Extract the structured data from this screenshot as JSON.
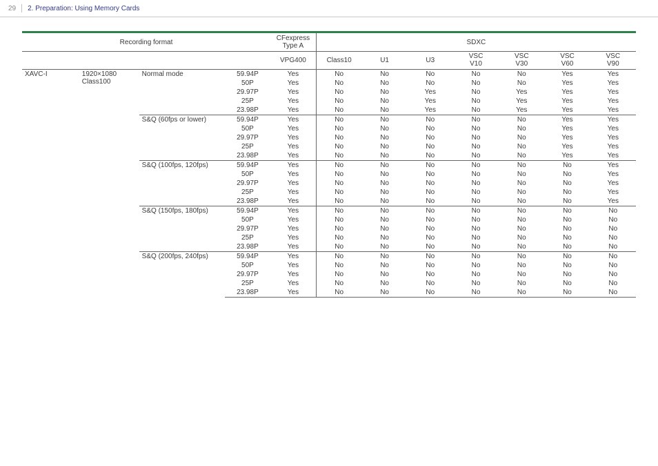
{
  "page_number": "29",
  "header_title": "2. Preparation: Using Memory Cards",
  "colors": {
    "accent_green": "#2e814d",
    "header_blue": "#333a8a",
    "rule": "#666666"
  },
  "colheads": {
    "recording_format": "Recording format",
    "cfe": "CFexpress",
    "cfe2": "Type A",
    "sdxc": "SDXC",
    "vpg": "VPG400",
    "class10": "Class10",
    "u1": "U1",
    "u3": "U3",
    "v10a": "VSC",
    "v10b": "V10",
    "v30a": "VSC",
    "v30b": "V30",
    "v60a": "VSC",
    "v60b": "V60",
    "v90a": "VSC",
    "v90b": "V90"
  },
  "codec": "XAVC-I",
  "resolution_l1": "1920×1080",
  "resolution_l2": "Class100",
  "groups": [
    {
      "mode": "Normal mode",
      "rows": [
        {
          "fr": "59.94P",
          "cfe": "Yes",
          "c10": "No",
          "u1": "No",
          "u3": "No",
          "v10": "No",
          "v30": "No",
          "v60": "Yes",
          "v90": "Yes"
        },
        {
          "fr": "50P",
          "cfe": "Yes",
          "c10": "No",
          "u1": "No",
          "u3": "No",
          "v10": "No",
          "v30": "No",
          "v60": "Yes",
          "v90": "Yes"
        },
        {
          "fr": "29.97P",
          "cfe": "Yes",
          "c10": "No",
          "u1": "No",
          "u3": "Yes",
          "v10": "No",
          "v30": "Yes",
          "v60": "Yes",
          "v90": "Yes"
        },
        {
          "fr": "25P",
          "cfe": "Yes",
          "c10": "No",
          "u1": "No",
          "u3": "Yes",
          "v10": "No",
          "v30": "Yes",
          "v60": "Yes",
          "v90": "Yes"
        },
        {
          "fr": "23.98P",
          "cfe": "Yes",
          "c10": "No",
          "u1": "No",
          "u3": "Yes",
          "v10": "No",
          "v30": "Yes",
          "v60": "Yes",
          "v90": "Yes"
        }
      ]
    },
    {
      "mode": "S&Q (60fps or lower)",
      "rows": [
        {
          "fr": "59.94P",
          "cfe": "Yes",
          "c10": "No",
          "u1": "No",
          "u3": "No",
          "v10": "No",
          "v30": "No",
          "v60": "Yes",
          "v90": "Yes"
        },
        {
          "fr": "50P",
          "cfe": "Yes",
          "c10": "No",
          "u1": "No",
          "u3": "No",
          "v10": "No",
          "v30": "No",
          "v60": "Yes",
          "v90": "Yes"
        },
        {
          "fr": "29.97P",
          "cfe": "Yes",
          "c10": "No",
          "u1": "No",
          "u3": "No",
          "v10": "No",
          "v30": "No",
          "v60": "Yes",
          "v90": "Yes"
        },
        {
          "fr": "25P",
          "cfe": "Yes",
          "c10": "No",
          "u1": "No",
          "u3": "No",
          "v10": "No",
          "v30": "No",
          "v60": "Yes",
          "v90": "Yes"
        },
        {
          "fr": "23.98P",
          "cfe": "Yes",
          "c10": "No",
          "u1": "No",
          "u3": "No",
          "v10": "No",
          "v30": "No",
          "v60": "Yes",
          "v90": "Yes"
        }
      ]
    },
    {
      "mode": "S&Q (100fps, 120fps)",
      "rows": [
        {
          "fr": "59.94P",
          "cfe": "Yes",
          "c10": "No",
          "u1": "No",
          "u3": "No",
          "v10": "No",
          "v30": "No",
          "v60": "No",
          "v90": "Yes"
        },
        {
          "fr": "50P",
          "cfe": "Yes",
          "c10": "No",
          "u1": "No",
          "u3": "No",
          "v10": "No",
          "v30": "No",
          "v60": "No",
          "v90": "Yes"
        },
        {
          "fr": "29.97P",
          "cfe": "Yes",
          "c10": "No",
          "u1": "No",
          "u3": "No",
          "v10": "No",
          "v30": "No",
          "v60": "No",
          "v90": "Yes"
        },
        {
          "fr": "25P",
          "cfe": "Yes",
          "c10": "No",
          "u1": "No",
          "u3": "No",
          "v10": "No",
          "v30": "No",
          "v60": "No",
          "v90": "Yes"
        },
        {
          "fr": "23.98P",
          "cfe": "Yes",
          "c10": "No",
          "u1": "No",
          "u3": "No",
          "v10": "No",
          "v30": "No",
          "v60": "No",
          "v90": "Yes"
        }
      ]
    },
    {
      "mode": "S&Q (150fps, 180fps)",
      "rows": [
        {
          "fr": "59.94P",
          "cfe": "Yes",
          "c10": "No",
          "u1": "No",
          "u3": "No",
          "v10": "No",
          "v30": "No",
          "v60": "No",
          "v90": "No"
        },
        {
          "fr": "50P",
          "cfe": "Yes",
          "c10": "No",
          "u1": "No",
          "u3": "No",
          "v10": "No",
          "v30": "No",
          "v60": "No",
          "v90": "No"
        },
        {
          "fr": "29.97P",
          "cfe": "Yes",
          "c10": "No",
          "u1": "No",
          "u3": "No",
          "v10": "No",
          "v30": "No",
          "v60": "No",
          "v90": "No"
        },
        {
          "fr": "25P",
          "cfe": "Yes",
          "c10": "No",
          "u1": "No",
          "u3": "No",
          "v10": "No",
          "v30": "No",
          "v60": "No",
          "v90": "No"
        },
        {
          "fr": "23.98P",
          "cfe": "Yes",
          "c10": "No",
          "u1": "No",
          "u3": "No",
          "v10": "No",
          "v30": "No",
          "v60": "No",
          "v90": "No"
        }
      ]
    },
    {
      "mode": "S&Q (200fps, 240fps)",
      "rows": [
        {
          "fr": "59.94P",
          "cfe": "Yes",
          "c10": "No",
          "u1": "No",
          "u3": "No",
          "v10": "No",
          "v30": "No",
          "v60": "No",
          "v90": "No"
        },
        {
          "fr": "50P",
          "cfe": "Yes",
          "c10": "No",
          "u1": "No",
          "u3": "No",
          "v10": "No",
          "v30": "No",
          "v60": "No",
          "v90": "No"
        },
        {
          "fr": "29.97P",
          "cfe": "Yes",
          "c10": "No",
          "u1": "No",
          "u3": "No",
          "v10": "No",
          "v30": "No",
          "v60": "No",
          "v90": "No"
        },
        {
          "fr": "25P",
          "cfe": "Yes",
          "c10": "No",
          "u1": "No",
          "u3": "No",
          "v10": "No",
          "v30": "No",
          "v60": "No",
          "v90": "No"
        },
        {
          "fr": "23.98P",
          "cfe": "Yes",
          "c10": "No",
          "u1": "No",
          "u3": "No",
          "v10": "No",
          "v30": "No",
          "v60": "No",
          "v90": "No"
        }
      ]
    }
  ]
}
